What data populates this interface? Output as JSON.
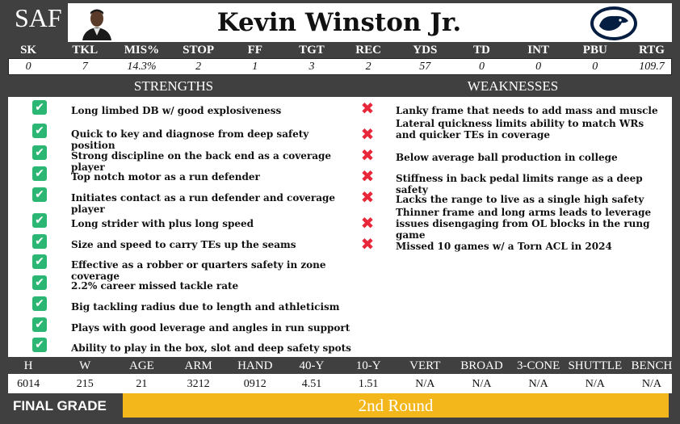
{
  "header": {
    "position": "SAF",
    "player_name": "Kevin Winston Jr."
  },
  "stats": {
    "headers": [
      "SK",
      "TKL",
      "MIS%",
      "STOP",
      "FF",
      "TGT",
      "REC",
      "YDS",
      "TD",
      "INT",
      "PBU",
      "RTG"
    ],
    "values": [
      "0",
      "7",
      "14.3%",
      "2",
      "1",
      "3",
      "2",
      "57",
      "0",
      "0",
      "0",
      "109.7"
    ]
  },
  "strengths": {
    "title": "STRENGTHS",
    "items": [
      "Long limbed DB w/ good explosiveness",
      "Quick to key and diagnose from deep safety position",
      "Strong discipline on the back end as a coverage player",
      "Top notch motor as a run defender",
      "Initiates contact as a run defender and coverage player",
      "Long strider with plus long speed",
      "Size and speed to carry TEs up the seams",
      "Effective as a robber or quarters safety in zone coverage",
      "2.2% career missed tackle rate",
      "Big tackling radius due to length and athleticism",
      "Plays with good leverage and angles in run support",
      "Ability to play in the box, slot and deep safety spots"
    ]
  },
  "weaknesses": {
    "title": "WEAKNESSES",
    "items": [
      "Lanky frame that needs to add mass and muscle",
      "Lateral quickness limits ability to match WRs and quicker TEs in coverage",
      "Below average ball production in college",
      "Stiffness in back pedal limits range as a deep safety",
      "Lacks the range to live as a single high safety",
      "Thinner frame and long arms leads to leverage issues disengaging from OL blocks in the rung game",
      "Missed 10 games w/ a Torn ACL in 2024"
    ]
  },
  "combine": {
    "headers": [
      "H",
      "W",
      "AGE",
      "ARM",
      "HAND",
      "40-Y",
      "10-Y",
      "VERT",
      "BROAD",
      "3-CONE",
      "SHUTTLE",
      "BENCH"
    ],
    "values": [
      "6014",
      "215",
      "21",
      "3212",
      "0912",
      "4.51",
      "1.51",
      "N/A",
      "N/A",
      "N/A",
      "N/A",
      "N/A"
    ]
  },
  "final": {
    "label": "FINAL GRADE",
    "grade": "2nd Round"
  },
  "colors": {
    "background": "#404040",
    "check": "#2bb673",
    "cross": "#e8283a",
    "grade_bar": "#f4b71b",
    "logo_navy": "#041e42"
  },
  "icons": {
    "strength": "check-icon",
    "weakness": "cross-icon",
    "logo": "nittany-lion-logo"
  }
}
